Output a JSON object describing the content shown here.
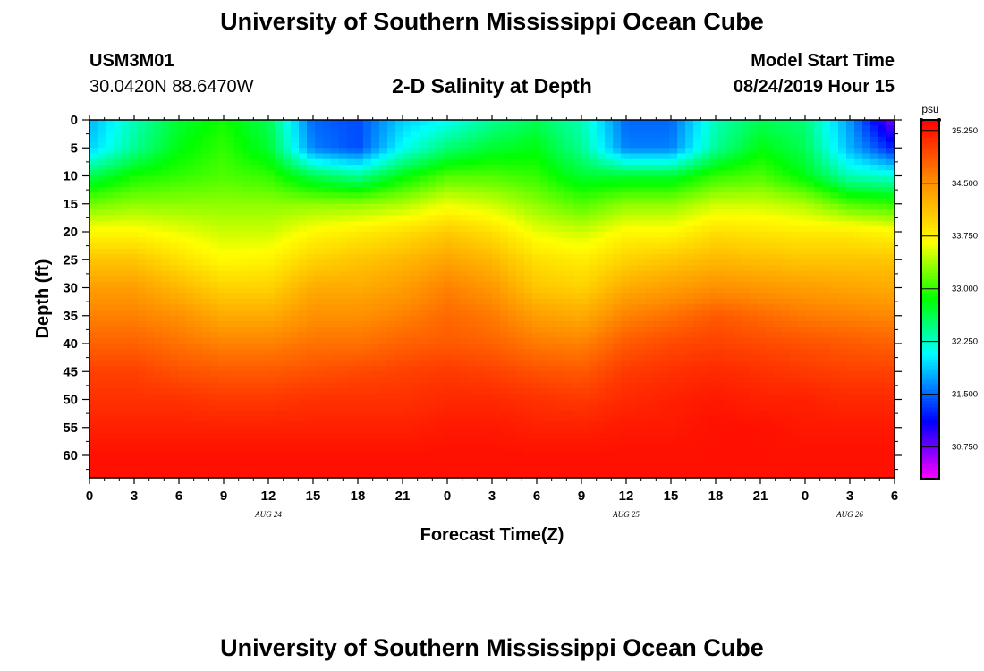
{
  "header": {
    "title": "University of Southern Mississippi Ocean Cube",
    "station_id": "USM3M01",
    "coordinates": "30.0420N 88.6470W",
    "plot_title": "2-D Salinity at Depth",
    "model_label": "Model Start Time",
    "model_start": "08/24/2019 Hour 15"
  },
  "footer": {
    "title": "University of Southern Mississippi Ocean Cube"
  },
  "chart_data": {
    "type": "heatmap",
    "title": "2-D Salinity at Depth",
    "xlabel": "Forecast Time(Z)",
    "ylabel": "Depth (ft)",
    "x_ticks": [
      "0",
      "3",
      "6",
      "9",
      "12",
      "15",
      "18",
      "21",
      "0",
      "3",
      "6",
      "9",
      "12",
      "15",
      "18",
      "21",
      "0",
      "3",
      "6"
    ],
    "x_hours": [
      0,
      54
    ],
    "date_labels": [
      {
        "label": "AUG 24",
        "hour": 12
      },
      {
        "label": "AUG 25",
        "hour": 36
      },
      {
        "label": "AUG 26",
        "hour": 51
      }
    ],
    "y_ticks": [
      0,
      5,
      10,
      15,
      20,
      25,
      30,
      35,
      40,
      45,
      50,
      55,
      60
    ],
    "ylim": [
      0,
      64
    ],
    "colorbar": {
      "unit": "psu",
      "ticks": [
        "35.250",
        "34.500",
        "33.750",
        "33.000",
        "32.250",
        "31.500",
        "30.750"
      ],
      "tick_values": [
        35.25,
        34.5,
        33.75,
        33.0,
        32.25,
        31.5,
        30.75
      ],
      "range": [
        30.3,
        35.4
      ]
    },
    "salinity_profiles": {
      "depths_ft": [
        0,
        5,
        10,
        15,
        20,
        25,
        30,
        35,
        40,
        45,
        50,
        55,
        60,
        64
      ],
      "columns": [
        {
          "hour": 0,
          "values": [
            31.8,
            31.9,
            32.6,
            33.2,
            33.7,
            34.1,
            34.4,
            34.6,
            34.8,
            35.0,
            35.1,
            35.2,
            35.3,
            35.3
          ]
        },
        {
          "hour": 3,
          "values": [
            32.3,
            32.4,
            32.9,
            33.3,
            33.7,
            34.1,
            34.4,
            34.6,
            34.8,
            35.0,
            35.1,
            35.2,
            35.3,
            35.3
          ]
        },
        {
          "hour": 6,
          "values": [
            32.7,
            32.8,
            33.0,
            33.3,
            33.6,
            33.9,
            34.2,
            34.5,
            34.7,
            34.9,
            35.1,
            35.2,
            35.3,
            35.3
          ]
        },
        {
          "hour": 9,
          "values": [
            32.9,
            33.0,
            33.1,
            33.3,
            33.5,
            33.7,
            34.0,
            34.3,
            34.6,
            34.85,
            35.05,
            35.2,
            35.3,
            35.3
          ]
        },
        {
          "hour": 12,
          "values": [
            32.6,
            32.7,
            33.0,
            33.3,
            33.5,
            33.75,
            34.0,
            34.3,
            34.6,
            34.85,
            35.05,
            35.2,
            35.3,
            35.3
          ]
        },
        {
          "hour": 15,
          "values": [
            31.5,
            31.6,
            32.6,
            33.3,
            33.7,
            34.0,
            34.3,
            34.5,
            34.7,
            34.9,
            35.1,
            35.2,
            35.3,
            35.3
          ]
        },
        {
          "hour": 18,
          "values": [
            31.4,
            31.4,
            32.4,
            33.3,
            33.8,
            34.1,
            34.3,
            34.5,
            34.7,
            34.95,
            35.1,
            35.2,
            35.3,
            35.3
          ]
        },
        {
          "hour": 21,
          "values": [
            31.9,
            32.1,
            32.8,
            33.4,
            33.9,
            34.2,
            34.4,
            34.6,
            34.8,
            35.0,
            35.1,
            35.2,
            35.3,
            35.3
          ]
        },
        {
          "hour": 24,
          "values": [
            32.1,
            32.5,
            33.1,
            33.6,
            34.05,
            34.35,
            34.6,
            34.75,
            34.85,
            35.05,
            35.15,
            35.25,
            35.3,
            35.3
          ]
        },
        {
          "hour": 27,
          "values": [
            32.4,
            32.7,
            33.1,
            33.5,
            33.9,
            34.2,
            34.45,
            34.65,
            34.8,
            35.0,
            35.15,
            35.25,
            35.3,
            35.3
          ]
        },
        {
          "hour": 30,
          "values": [
            32.6,
            32.8,
            33.0,
            33.3,
            33.6,
            33.9,
            34.1,
            34.4,
            34.65,
            34.9,
            35.1,
            35.2,
            35.3,
            35.3
          ]
        },
        {
          "hour": 33,
          "values": [
            32.3,
            32.4,
            32.7,
            33.1,
            33.5,
            33.8,
            34.0,
            34.3,
            34.6,
            34.85,
            35.05,
            35.2,
            35.3,
            35.3
          ]
        },
        {
          "hour": 36,
          "values": [
            31.5,
            31.6,
            32.7,
            33.3,
            33.7,
            34.0,
            34.3,
            34.6,
            34.85,
            35.05,
            35.15,
            35.25,
            35.3,
            35.3
          ]
        },
        {
          "hour": 39,
          "values": [
            31.5,
            31.6,
            32.7,
            33.3,
            33.7,
            34.1,
            34.4,
            34.7,
            34.95,
            35.1,
            35.2,
            35.25,
            35.3,
            35.3
          ]
        },
        {
          "hour": 42,
          "values": [
            32.3,
            32.4,
            33.0,
            33.5,
            33.9,
            34.2,
            34.5,
            34.85,
            35.0,
            35.15,
            35.25,
            35.3,
            35.3,
            35.3
          ]
        },
        {
          "hour": 45,
          "values": [
            32.6,
            32.8,
            33.1,
            33.5,
            33.85,
            34.15,
            34.45,
            34.75,
            34.95,
            35.1,
            35.2,
            35.3,
            35.3,
            35.3
          ]
        },
        {
          "hour": 48,
          "values": [
            32.5,
            32.6,
            32.8,
            33.4,
            33.8,
            34.1,
            34.4,
            34.65,
            34.9,
            35.05,
            35.2,
            35.25,
            35.3,
            35.3
          ]
        },
        {
          "hour": 51,
          "values": [
            31.7,
            31.8,
            32.3,
            33.1,
            33.8,
            34.1,
            34.35,
            34.6,
            34.85,
            35.0,
            35.15,
            35.25,
            35.3,
            35.3
          ]
        },
        {
          "hour": 54,
          "values": [
            30.7,
            31.2,
            32.2,
            33.0,
            33.7,
            34.1,
            34.3,
            34.55,
            34.8,
            35.0,
            35.15,
            35.25,
            35.3,
            35.3
          ]
        }
      ]
    }
  }
}
